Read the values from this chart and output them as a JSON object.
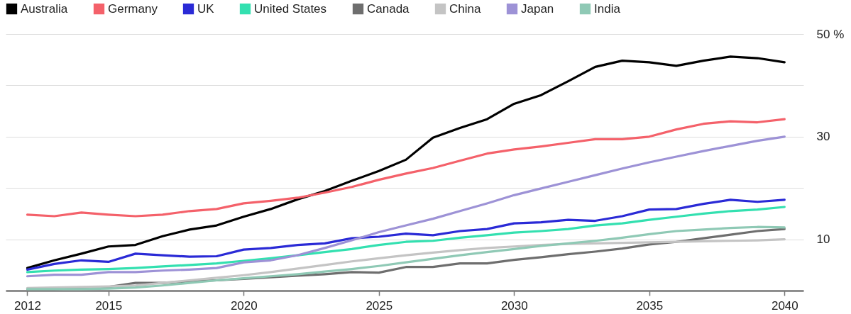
{
  "chart_data": {
    "type": "line",
    "x": [
      2012,
      2013,
      2014,
      2015,
      2016,
      2017,
      2018,
      2019,
      2020,
      2021,
      2022,
      2023,
      2024,
      2025,
      2026,
      2027,
      2028,
      2029,
      2030,
      2031,
      2032,
      2033,
      2034,
      2035,
      2036,
      2037,
      2038,
      2039,
      2040
    ],
    "series": [
      {
        "name": "Australia",
        "color": "#000000",
        "values": [
          4.4,
          5.9,
          7.2,
          8.6,
          8.9,
          10.6,
          11.9,
          12.7,
          14.4,
          15.9,
          17.8,
          19.4,
          21.4,
          23.3,
          25.5,
          29.8,
          31.7,
          33.4,
          36.4,
          38.1,
          40.8,
          43.6,
          44.8,
          44.5,
          43.8,
          44.8,
          45.6,
          45.3,
          44.5
        ]
      },
      {
        "name": "Germany",
        "color": "#f4616a",
        "values": [
          14.8,
          14.5,
          15.2,
          14.8,
          14.5,
          14.8,
          15.5,
          15.9,
          17.0,
          17.5,
          18.1,
          19.1,
          20.2,
          21.6,
          22.8,
          23.9,
          25.3,
          26.7,
          27.5,
          28.1,
          28.8,
          29.5,
          29.5,
          30.0,
          31.4,
          32.5,
          33.0,
          32.8,
          33.4
        ]
      },
      {
        "name": "UK",
        "color": "#2a2ad6",
        "values": [
          4.1,
          5.2,
          5.9,
          5.6,
          7.2,
          6.9,
          6.6,
          6.7,
          8.0,
          8.3,
          8.9,
          9.2,
          10.2,
          10.5,
          11.1,
          10.8,
          11.6,
          12.0,
          13.1,
          13.3,
          13.8,
          13.6,
          14.5,
          15.8,
          15.9,
          16.9,
          17.7,
          17.3,
          17.7
        ]
      },
      {
        "name": "United States",
        "color": "#33e0b0",
        "values": [
          3.6,
          3.9,
          4.1,
          4.2,
          4.4,
          4.7,
          5.0,
          5.3,
          5.8,
          6.3,
          6.9,
          7.5,
          8.1,
          8.9,
          9.5,
          9.7,
          10.3,
          10.8,
          11.3,
          11.6,
          12.0,
          12.7,
          13.1,
          13.8,
          14.4,
          15.0,
          15.5,
          15.8,
          16.3
        ]
      },
      {
        "name": "Canada",
        "color": "#6e6e6e",
        "values": [
          0.3,
          0.3,
          0.5,
          0.7,
          1.5,
          1.5,
          1.8,
          2.0,
          2.3,
          2.6,
          2.9,
          3.2,
          3.6,
          3.5,
          4.6,
          4.6,
          5.3,
          5.3,
          6.0,
          6.5,
          7.1,
          7.6,
          8.2,
          9.0,
          9.5,
          10.2,
          10.9,
          11.6,
          12.0
        ]
      },
      {
        "name": "China",
        "color": "#c4c4c4",
        "values": [
          0.5,
          0.6,
          0.7,
          0.8,
          1.0,
          1.5,
          2.0,
          2.5,
          3.0,
          3.6,
          4.3,
          5.0,
          5.7,
          6.3,
          6.9,
          7.4,
          7.9,
          8.3,
          8.6,
          8.9,
          9.1,
          9.2,
          9.3,
          9.4,
          9.5,
          9.6,
          9.7,
          9.8,
          10.0
        ]
      },
      {
        "name": "Japan",
        "color": "#9d92d6",
        "values": [
          2.8,
          3.1,
          3.1,
          3.6,
          3.6,
          3.9,
          4.1,
          4.4,
          5.5,
          5.9,
          6.9,
          8.3,
          9.8,
          11.4,
          12.7,
          14.0,
          15.5,
          17.0,
          18.6,
          19.9,
          21.2,
          22.5,
          23.8,
          25.0,
          26.1,
          27.2,
          28.2,
          29.2,
          30.0
        ]
      },
      {
        "name": "India",
        "color": "#8fc9b5",
        "values": [
          0.3,
          0.3,
          0.3,
          0.4,
          0.6,
          1.0,
          1.5,
          2.0,
          2.4,
          2.8,
          3.2,
          3.7,
          4.2,
          4.8,
          5.5,
          6.2,
          6.9,
          7.5,
          8.1,
          8.7,
          9.2,
          9.7,
          10.3,
          11.0,
          11.6,
          11.9,
          12.2,
          12.4,
          12.3
        ]
      }
    ],
    "xlim": [
      2011.2,
      2040.7
    ],
    "xticks": [
      2012,
      2015,
      2020,
      2025,
      2030,
      2035,
      2040
    ],
    "ylim": [
      0,
      50
    ],
    "yticks": [
      {
        "value": 0,
        "label": null
      },
      10,
      {
        "value": 20,
        "label": null
      },
      30,
      {
        "value": 40,
        "label": null
      },
      {
        "value": 50,
        "label": "50 %"
      }
    ],
    "grid": "y",
    "legend": "top left",
    "marker": "none",
    "line_style": "solid"
  }
}
